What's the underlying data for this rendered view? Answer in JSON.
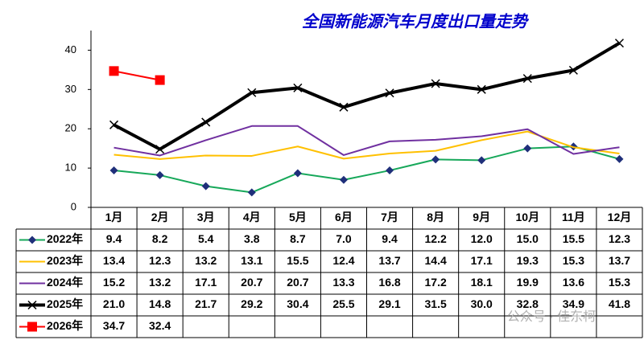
{
  "chart_data": {
    "type": "line",
    "title": "全国新能源汽车月度出口量走势",
    "categories": [
      "1月",
      "2月",
      "3月",
      "4月",
      "5月",
      "6月",
      "7月",
      "8月",
      "9月",
      "10月",
      "11月",
      "12月"
    ],
    "ylim": [
      0,
      45
    ],
    "yticks": [
      0,
      10,
      20,
      30,
      40
    ],
    "grid": false,
    "series": [
      {
        "name": "2022年",
        "color": "#17a85a",
        "marker": "diamond",
        "marker_color": "#1f2f7a",
        "values": [
          9.4,
          8.2,
          5.4,
          3.8,
          8.7,
          7.0,
          9.4,
          12.2,
          12.0,
          15.0,
          15.5,
          12.3
        ],
        "value_labels": [
          "9.4",
          "8.2",
          "5.4",
          "3.8",
          "8.7",
          "7.0",
          "9.4",
          "12.2",
          "12.0",
          "15.0",
          "15.5",
          "12.3"
        ]
      },
      {
        "name": "2023年",
        "color": "#ffc000",
        "marker": "none",
        "values": [
          13.4,
          12.3,
          13.2,
          13.1,
          15.5,
          12.4,
          13.7,
          14.4,
          17.1,
          19.3,
          15.3,
          13.7
        ],
        "value_labels": [
          "13.4",
          "12.3",
          "13.2",
          "13.1",
          "15.5",
          "12.4",
          "13.7",
          "14.4",
          "17.1",
          "19.3",
          "15.3",
          "13.7"
        ]
      },
      {
        "name": "2024年",
        "color": "#7030a0",
        "marker": "none",
        "values": [
          15.2,
          13.2,
          17.1,
          20.7,
          20.7,
          13.3,
          16.8,
          17.2,
          18.1,
          19.9,
          13.6,
          15.3
        ],
        "value_labels": [
          "15.2",
          "13.2",
          "17.1",
          "20.7",
          "20.7",
          "13.3",
          "16.8",
          "17.2",
          "18.1",
          "19.9",
          "13.6",
          "15.3"
        ]
      },
      {
        "name": "2025年",
        "color": "#000000",
        "marker": "x",
        "values": [
          21.0,
          14.8,
          21.7,
          29.2,
          30.4,
          25.5,
          29.1,
          31.5,
          30.0,
          32.8,
          34.9,
          41.8
        ],
        "value_labels": [
          "21.0",
          "14.8",
          "21.7",
          "29.2",
          "30.4",
          "25.5",
          "29.1",
          "31.5",
          "30.0",
          "32.8",
          "34.9",
          "41.8"
        ]
      },
      {
        "name": "2026年",
        "color": "#ff0000",
        "marker": "square",
        "values": [
          34.7,
          32.4,
          null,
          null,
          null,
          null,
          null,
          null,
          null,
          null,
          null,
          null
        ],
        "value_labels": [
          "34.7",
          "32.4",
          null,
          null,
          null,
          null,
          null,
          null,
          null,
          null,
          null,
          null
        ]
      }
    ],
    "watermark": "公众号 · 佳东柯"
  }
}
